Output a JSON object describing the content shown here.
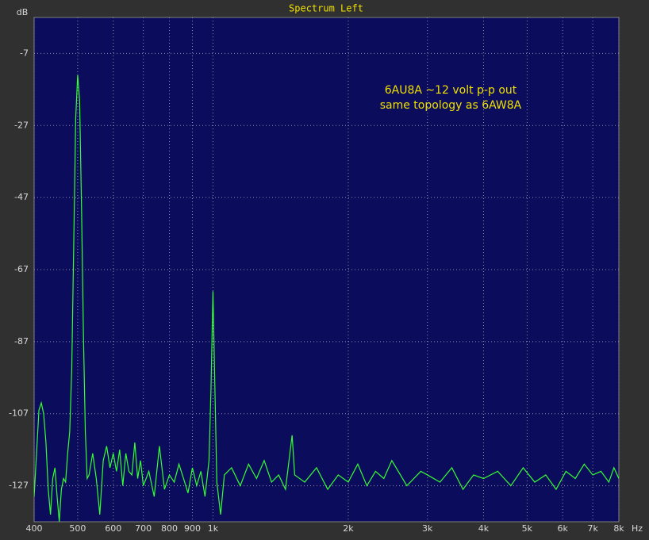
{
  "chart_data": {
    "type": "line",
    "title": "Spectrum Left",
    "y_label": "dB",
    "x_label": "Hz",
    "annotation": [
      "6AU8A ~12 volt p-p out",
      "same topology as 6AW8A"
    ],
    "x_log": true,
    "grid": true,
    "xlim": [
      400,
      8000
    ],
    "ylim": [
      -137,
      3
    ],
    "yticks": [
      -7,
      -27,
      -47,
      -67,
      -87,
      -107,
      -127
    ],
    "xticks": [
      400,
      500,
      600,
      700,
      800,
      900,
      {
        "value": 1000,
        "label": "1k"
      },
      {
        "value": 2000,
        "label": "2k"
      },
      {
        "value": 3000,
        "label": "3k"
      },
      {
        "value": 4000,
        "label": "4k"
      },
      {
        "value": 5000,
        "label": "5k"
      },
      {
        "value": 6000,
        "label": "6k"
      },
      {
        "value": 7000,
        "label": "7k"
      },
      {
        "value": 8000,
        "label": "8k"
      }
    ],
    "x": [
      400,
      405,
      410,
      415,
      420,
      425,
      430,
      435,
      440,
      445,
      450,
      455,
      460,
      465,
      470,
      475,
      480,
      485,
      490,
      495,
      500,
      505,
      510,
      515,
      520,
      525,
      530,
      540,
      550,
      560,
      570,
      580,
      590,
      600,
      610,
      620,
      630,
      640,
      650,
      660,
      670,
      680,
      690,
      700,
      720,
      740,
      760,
      780,
      800,
      820,
      840,
      860,
      880,
      900,
      920,
      940,
      960,
      980,
      990,
      1000,
      1010,
      1020,
      1040,
      1060,
      1100,
      1150,
      1200,
      1250,
      1300,
      1350,
      1400,
      1450,
      1500,
      1520,
      1600,
      1700,
      1800,
      1900,
      2000,
      2100,
      2200,
      2300,
      2400,
      2500,
      2700,
      2900,
      3000,
      3200,
      3400,
      3600,
      3800,
      4000,
      4300,
      4600,
      4900,
      5200,
      5500,
      5800,
      6100,
      6400,
      6700,
      7000,
      7300,
      7600,
      7800,
      8000
    ],
    "series": [
      {
        "name": "Left",
        "color": "#33ff33",
        "values": [
          -130,
          -118,
          -106,
          -104,
          -107,
          -115,
          -128,
          -135,
          -125,
          -122,
          -130,
          -137,
          -128,
          -125,
          -126,
          -118,
          -112,
          -95,
          -60,
          -25,
          -13,
          -20,
          -50,
          -85,
          -112,
          -125,
          -124,
          -118,
          -125,
          -135,
          -120,
          -116,
          -122,
          -118,
          -123,
          -117,
          -127,
          -118,
          -123,
          -124,
          -115,
          -125,
          -120,
          -127,
          -123,
          -130,
          -116,
          -128,
          -124,
          -126,
          -121,
          -125,
          -129,
          -122,
          -127,
          -123,
          -130,
          -120,
          -100,
          -73,
          -100,
          -126,
          -135,
          -124,
          -122,
          -127,
          -121,
          -125,
          -120,
          -126,
          -124,
          -128,
          -113,
          -124,
          -126,
          -122,
          -128,
          -124,
          -126,
          -121,
          -127,
          -123,
          -125,
          -120,
          -127,
          -123,
          -124,
          -126,
          -122,
          -128,
          -124,
          -125,
          -123,
          -127,
          -122,
          -126,
          -124,
          -128,
          -123,
          -125,
          -121,
          -124,
          -123,
          -126,
          -122,
          -125
        ]
      }
    ]
  }
}
